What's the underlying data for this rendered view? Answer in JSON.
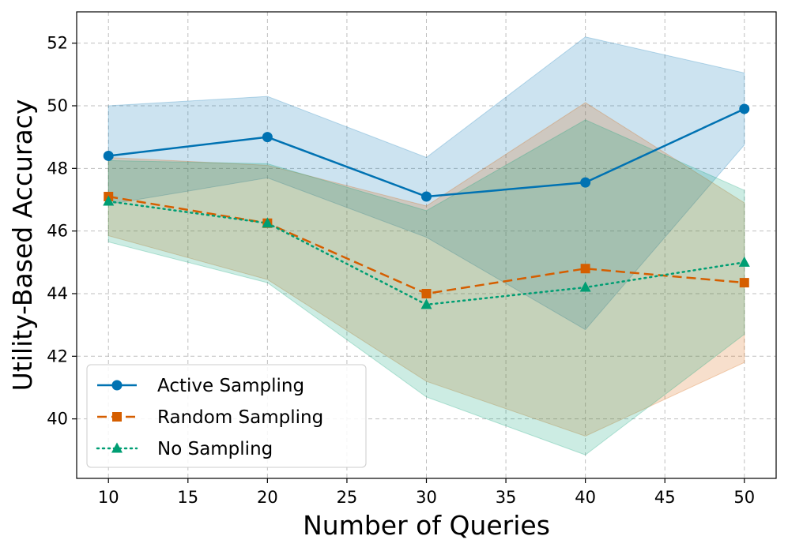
{
  "chart_data": {
    "type": "line",
    "title": "",
    "xlabel": "Number of Queries",
    "ylabel": "Utility-Based Accuracy",
    "xlim": [
      8,
      52
    ],
    "ylim": [
      38.1,
      53.0
    ],
    "xticks": [
      10,
      15,
      20,
      25,
      30,
      35,
      40,
      45,
      50
    ],
    "yticks": [
      40,
      42,
      44,
      46,
      48,
      50,
      52
    ],
    "grid": true,
    "legend_position": "lower-left",
    "x": [
      10,
      20,
      30,
      40,
      50
    ],
    "series": [
      {
        "name": "Active Sampling",
        "values": [
          48.4,
          49.0,
          47.1,
          47.55,
          49.9
        ],
        "lower": [
          46.85,
          47.7,
          45.8,
          42.85,
          48.75
        ],
        "upper": [
          50.0,
          50.3,
          48.35,
          52.2,
          51.05
        ],
        "color": "#0072B2",
        "linestyle": "solid",
        "marker": "circle"
      },
      {
        "name": "Random Sampling",
        "values": [
          47.1,
          46.25,
          44.0,
          44.8,
          44.35
        ],
        "lower": [
          45.85,
          44.45,
          41.2,
          39.45,
          41.8
        ],
        "upper": [
          48.35,
          48.1,
          46.8,
          50.1,
          46.9
        ],
        "color": "#D55E00",
        "linestyle": "dashed",
        "marker": "square"
      },
      {
        "name": "No Sampling",
        "values": [
          46.95,
          46.25,
          43.65,
          44.2,
          45.0
        ],
        "lower": [
          45.65,
          44.35,
          40.7,
          38.85,
          42.7
        ],
        "upper": [
          48.25,
          48.15,
          46.65,
          49.55,
          47.3
        ],
        "color": "#009E73",
        "linestyle": "dotted",
        "marker": "triangle"
      }
    ]
  }
}
